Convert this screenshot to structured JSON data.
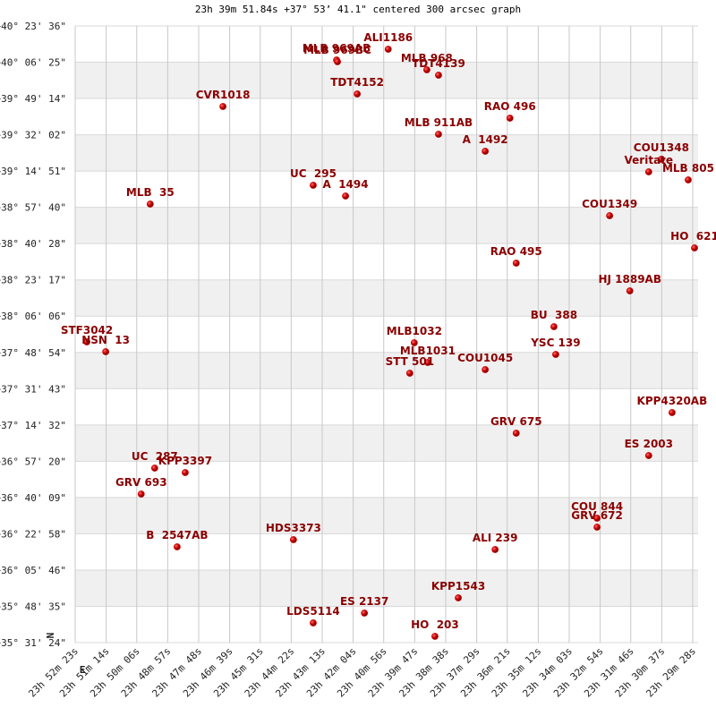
{
  "chart_data": {
    "type": "scatter",
    "title": "23h 39m 51.84s +37° 53’ 41.1\" centered 300 arcsec graph",
    "compass": {
      "north": "N",
      "east": "E"
    },
    "color": "#cc0000",
    "label_color": "#8b0000",
    "grid": true,
    "banded": true,
    "labels": [
      "ALI1186",
      "MLB 969AB",
      "MLB 969BC",
      "MLB 968",
      "TDT4139",
      "TDT4152",
      "CVR1018",
      "RAO 496",
      "MLB 911AB",
      "A  1492",
      "COU1348",
      "Veritate",
      "MLB 805",
      "UC  295",
      "A  1494",
      "MLB  35",
      "COU1349",
      "HO  621",
      "RAO 495",
      "HJ 1889AB",
      "BU  388",
      "STF3042",
      "NSN  13",
      "MLB1032",
      "YSC 139",
      "MLB1031",
      "STT 501",
      "COU1045",
      "KPP4320AB",
      "GRV 675",
      "ES 2003",
      "UC  287",
      "KPP3397",
      "GRV 693",
      "COU 844",
      "GRV 672",
      "HDS3373",
      "B  2547AB",
      "ALI 239",
      "KPP1543",
      "ES 2137",
      "LDS5114",
      "HO  203"
    ],
    "x": [
      2446,
      2561,
      2559,
      2360,
      2334,
      2515,
      2814,
      2175,
      2334,
      2230,
      1838,
      1866,
      1778,
      2613,
      2541,
      2976,
      1953,
      1764,
      2161,
      1908,
      2077,
      3117,
      3075,
      2388,
      2073,
      2358,
      2398,
      2230,
      1814,
      2161,
      1866,
      2966,
      2898,
      2996,
      1981,
      1981,
      2657,
      2916,
      2208,
      2290,
      2499,
      2613,
      2342
    ],
    "y": [
      144755,
      144449,
      144398,
      144169,
      144017,
      143482,
      143126,
      142795,
      142337,
      141854,
      141625,
      141269,
      141040,
      140887,
      140582,
      140353,
      140022,
      139106,
      138673,
      137884,
      136866,
      136434,
      136154,
      136408,
      136078,
      135849,
      135543,
      135645,
      134424,
      133838,
      133202,
      132846,
      132719,
      132108,
      131421,
      131167,
      130810,
      130607,
      130530,
      129156,
      128724,
      128444,
      128062
    ],
    "xlim": [
      3143,
      1756
    ],
    "ylim": [
      127884,
      145416
    ],
    "xticks": [
      {
        "value": 3143,
        "label": "23h 52m 23s"
      },
      {
        "value": 3074,
        "label": "23h 51m 14s"
      },
      {
        "value": 3006,
        "label": "23h 50m 06s"
      },
      {
        "value": 2937,
        "label": "23h 48m 57s"
      },
      {
        "value": 2868,
        "label": "23h 47m 48s"
      },
      {
        "value": 2799,
        "label": "23h 46m 39s"
      },
      {
        "value": 2731,
        "label": "23h 45m 31s"
      },
      {
        "value": 2662,
        "label": "23h 44m 22s"
      },
      {
        "value": 2593,
        "label": "23h 43m 13s"
      },
      {
        "value": 2524,
        "label": "23h 42m 04s"
      },
      {
        "value": 2456,
        "label": "23h 40m 56s"
      },
      {
        "value": 2387,
        "label": "23h 39m 47s"
      },
      {
        "value": 2318,
        "label": "23h 38m 38s"
      },
      {
        "value": 2249,
        "label": "23h 37m 29s"
      },
      {
        "value": 2181,
        "label": "23h 36m 21s"
      },
      {
        "value": 2112,
        "label": "23h 35m 12s"
      },
      {
        "value": 2043,
        "label": "23h 34m 03s"
      },
      {
        "value": 1974,
        "label": "23h 32m 54s"
      },
      {
        "value": 1906,
        "label": "23h 31m 46s"
      },
      {
        "value": 1837,
        "label": "23h 30m 37s"
      },
      {
        "value": 1768,
        "label": "23h 29m 28s"
      }
    ],
    "yticks": [
      {
        "value": 127884,
        "label": "+35° 31' 24\""
      },
      {
        "value": 128915,
        "label": "+35° 48' 35\""
      },
      {
        "value": 129946,
        "label": "+36° 05' 46\""
      },
      {
        "value": 130978,
        "label": "+36° 22' 58\""
      },
      {
        "value": 132009,
        "label": "+36° 40' 09\""
      },
      {
        "value": 133040,
        "label": "+36° 57' 20\""
      },
      {
        "value": 134072,
        "label": "+37° 14' 32\""
      },
      {
        "value": 135103,
        "label": "+37° 31' 43\""
      },
      {
        "value": 136134,
        "label": "+37° 48' 54\""
      },
      {
        "value": 137166,
        "label": "+38° 06' 06\""
      },
      {
        "value": 138197,
        "label": "+38° 23' 17\""
      },
      {
        "value": 139228,
        "label": "+38° 40' 28\""
      },
      {
        "value": 140260,
        "label": "+38° 57' 40\""
      },
      {
        "value": 141291,
        "label": "+39° 14' 51\""
      },
      {
        "value": 142322,
        "label": "+39° 32' 02\""
      },
      {
        "value": 143354,
        "label": "+39° 49' 14\""
      },
      {
        "value": 144385,
        "label": "+40° 06' 25\""
      },
      {
        "value": 145416,
        "label": "+40° 23' 36\""
      }
    ]
  }
}
